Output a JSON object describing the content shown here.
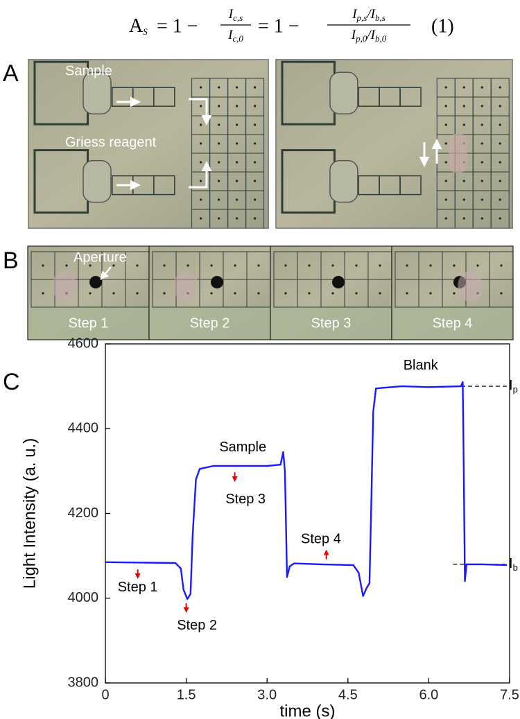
{
  "equation": {
    "lhs": {
      "base": "A",
      "sub": "S"
    },
    "op1": "= 1 −",
    "frac1": {
      "num": {
        "base": "I",
        "sub": "c,s"
      },
      "den": {
        "base": "I",
        "sub": "c,0"
      }
    },
    "op2": "= 1 −",
    "frac2": {
      "num": [
        {
          "base": "I",
          "sub": "p,s"
        },
        {
          "base": "I",
          "sub": "b,s"
        }
      ],
      "den": [
        {
          "base": "I",
          "sub": "p,0"
        },
        {
          "base": "I",
          "sub": "b,0"
        }
      ],
      "sep": "/"
    },
    "number": "(1)"
  },
  "panel_a": {
    "label": "A",
    "annotations": [
      "Sample",
      "Griess reagent"
    ]
  },
  "panel_b": {
    "label": "B",
    "annotation": "Aperture",
    "steps": [
      "Step 1",
      "Step 2",
      "Step 3",
      "Step 4"
    ]
  },
  "chart_data": {
    "type": "line",
    "panel_label": "C",
    "x_label": "time (s)",
    "y_label": "Light Intensity (a. u.)",
    "color": "#1a1aff",
    "x": [
      0,
      1.3,
      1.4,
      1.45,
      1.52,
      1.58,
      1.62,
      1.68,
      1.75,
      2.0,
      3.0,
      3.25,
      3.3,
      3.33,
      3.37,
      3.42,
      3.5,
      4.0,
      4.6,
      4.7,
      4.78,
      4.85,
      4.9,
      4.93,
      4.97,
      5.02,
      5.5,
      6.0,
      6.6,
      6.63,
      6.65,
      6.67,
      6.7,
      7.0,
      7.45
    ],
    "values": [
      4085,
      4083,
      4070,
      4020,
      3998,
      4010,
      4150,
      4280,
      4305,
      4312,
      4312,
      4315,
      4345,
      4300,
      4050,
      4075,
      4082,
      4080,
      4078,
      4060,
      4005,
      4025,
      4035,
      4200,
      4440,
      4495,
      4500,
      4498,
      4500,
      4510,
      4300,
      4040,
      4080,
      4080,
      4078
    ],
    "xlim": [
      0,
      7.5
    ],
    "xticks": [
      0,
      1.5,
      {
        "value": 3,
        "label": "3.0"
      },
      4.5,
      {
        "value": 6,
        "label": "6.0"
      },
      7.5
    ],
    "ylim": [
      3800,
      4600
    ],
    "yticks": [
      3800,
      4000,
      4200,
      4400,
      4600
    ],
    "annotations": [
      "Blank",
      "Sample",
      "Step 1",
      "Step 2",
      "Step 3",
      "Step 4"
    ],
    "reference_lines": [
      {
        "value": 4500,
        "label": "I",
        "sub": "p"
      },
      {
        "value": 4080,
        "label": "I",
        "sub": "b"
      }
    ]
  }
}
